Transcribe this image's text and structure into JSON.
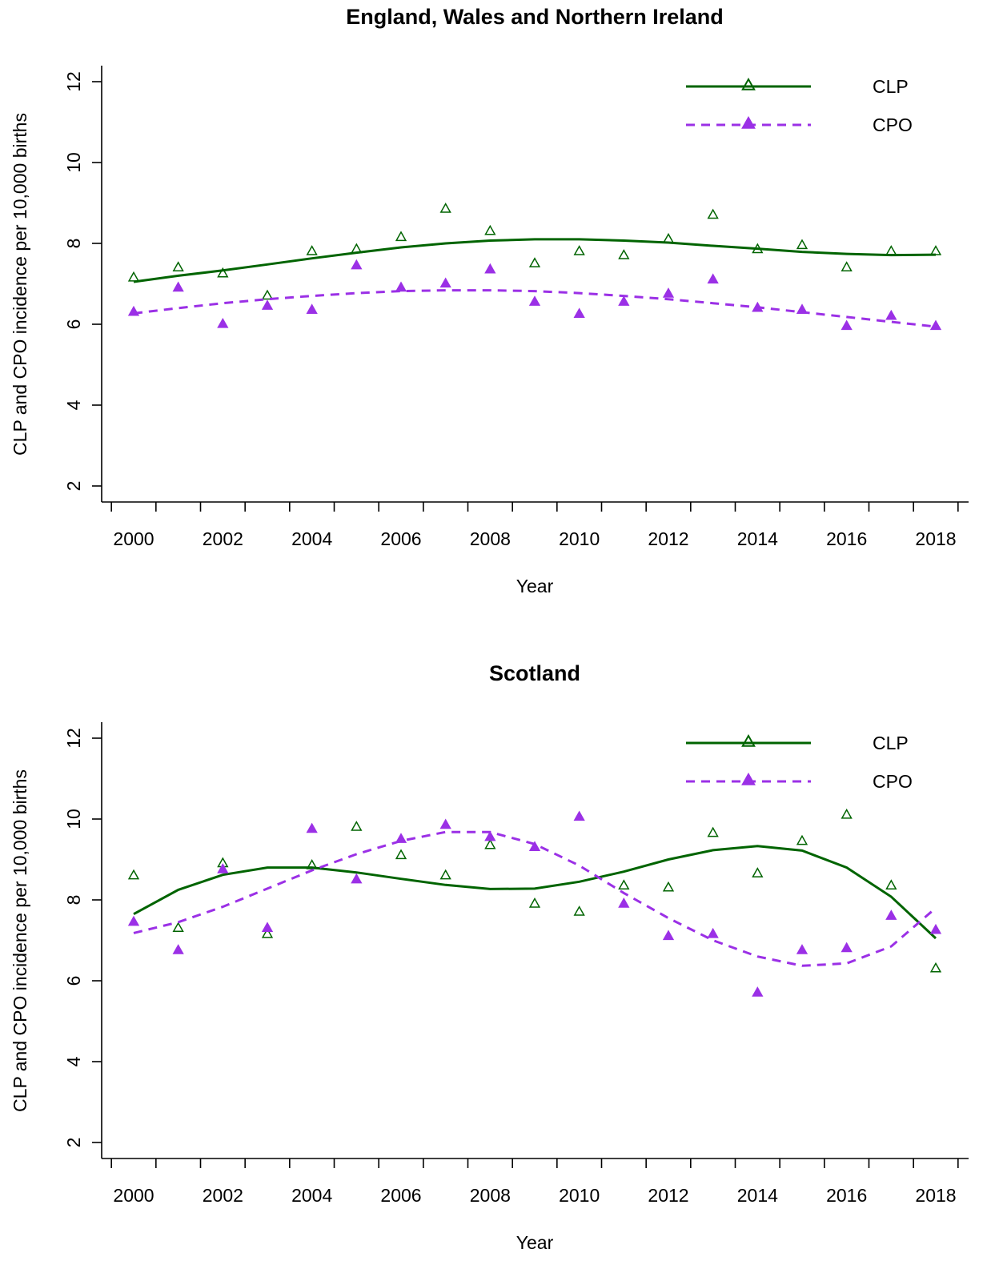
{
  "chart_data": [
    {
      "type": "scatter",
      "title": "England, Wales and Northern Ireland",
      "xlabel": "Year",
      "ylabel": "CLP and CPO incidence per 10,000 births",
      "xlim": [
        2000,
        2018
      ],
      "ylim": [
        2,
        12
      ],
      "x_ticks": [
        2000,
        2002,
        2004,
        2006,
        2008,
        2010,
        2012,
        2014,
        2016,
        2018
      ],
      "y_ticks": [
        2,
        4,
        6,
        8,
        10,
        12
      ],
      "legend_position": "top-right",
      "series": [
        {
          "name": "CLP",
          "color": "#006400",
          "marker": "open-triangle",
          "line": "solid",
          "x": [
            2000,
            2001,
            2002,
            2003,
            2004,
            2005,
            2006,
            2007,
            2008,
            2009,
            2010,
            2011,
            2012,
            2013,
            2014,
            2015,
            2016,
            2017,
            2018
          ],
          "points": [
            7.15,
            7.4,
            7.25,
            6.7,
            7.8,
            7.85,
            8.15,
            8.85,
            8.3,
            7.5,
            7.8,
            7.7,
            8.1,
            8.7,
            7.85,
            7.95,
            7.4,
            7.8,
            7.8
          ],
          "smooth": [
            7.05,
            7.2,
            7.33,
            7.48,
            7.63,
            7.77,
            7.9,
            8.0,
            8.07,
            8.1,
            8.1,
            8.07,
            8.02,
            7.94,
            7.87,
            7.79,
            7.74,
            7.71,
            7.72
          ]
        },
        {
          "name": "CPO",
          "color": "#9b30e6",
          "marker": "filled-triangle",
          "line": "dashed",
          "x": [
            2000,
            2001,
            2002,
            2003,
            2004,
            2005,
            2006,
            2007,
            2008,
            2009,
            2010,
            2011,
            2012,
            2013,
            2014,
            2015,
            2016,
            2017,
            2018
          ],
          "points": [
            6.3,
            6.9,
            6.0,
            6.45,
            6.35,
            7.45,
            6.9,
            7.0,
            7.35,
            6.55,
            6.25,
            6.55,
            6.75,
            7.1,
            6.4,
            6.35,
            5.95,
            6.2,
            5.95
          ],
          "smooth": [
            6.27,
            6.4,
            6.52,
            6.62,
            6.7,
            6.77,
            6.82,
            6.84,
            6.84,
            6.82,
            6.77,
            6.7,
            6.62,
            6.52,
            6.42,
            6.3,
            6.18,
            6.06,
            5.94
          ]
        }
      ]
    },
    {
      "type": "scatter",
      "title": "Scotland",
      "xlabel": "Year",
      "ylabel": "CLP and CPO incidence per 10,000 births",
      "xlim": [
        2000,
        2018
      ],
      "ylim": [
        2,
        12
      ],
      "x_ticks": [
        2000,
        2002,
        2004,
        2006,
        2008,
        2010,
        2012,
        2014,
        2016,
        2018
      ],
      "y_ticks": [
        2,
        4,
        6,
        8,
        10,
        12
      ],
      "legend_position": "top-right",
      "series": [
        {
          "name": "CLP",
          "color": "#006400",
          "marker": "open-triangle",
          "line": "solid",
          "x": [
            2000,
            2001,
            2002,
            2003,
            2004,
            2005,
            2006,
            2007,
            2008,
            2009,
            2010,
            2011,
            2012,
            2013,
            2014,
            2015,
            2016,
            2017,
            2018
          ],
          "points": [
            8.6,
            7.3,
            8.9,
            7.15,
            8.85,
            9.8,
            9.1,
            8.6,
            9.35,
            7.9,
            7.7,
            8.35,
            8.3,
            9.65,
            8.65,
            9.45,
            10.1,
            8.35,
            6.3
          ],
          "smooth": [
            7.65,
            8.25,
            8.62,
            8.8,
            8.8,
            8.68,
            8.52,
            8.37,
            8.27,
            8.28,
            8.45,
            8.7,
            9.0,
            9.23,
            9.33,
            9.22,
            8.8,
            8.08,
            7.05
          ]
        },
        {
          "name": "CPO",
          "color": "#9b30e6",
          "marker": "filled-triangle",
          "line": "dashed",
          "x": [
            2000,
            2001,
            2002,
            2003,
            2004,
            2005,
            2006,
            2007,
            2008,
            2009,
            2010,
            2011,
            2012,
            2013,
            2014,
            2015,
            2016,
            2017,
            2018
          ],
          "points": [
            7.45,
            6.75,
            8.75,
            7.3,
            9.75,
            8.5,
            9.5,
            9.85,
            9.55,
            9.3,
            10.05,
            7.9,
            7.1,
            7.15,
            5.7,
            6.75,
            6.8,
            7.6,
            7.25
          ],
          "smooth": [
            7.18,
            7.45,
            7.83,
            8.28,
            8.73,
            9.13,
            9.46,
            9.68,
            9.68,
            9.38,
            8.85,
            8.17,
            7.55,
            7.0,
            6.6,
            6.37,
            6.43,
            6.85,
            7.8
          ]
        }
      ]
    }
  ]
}
